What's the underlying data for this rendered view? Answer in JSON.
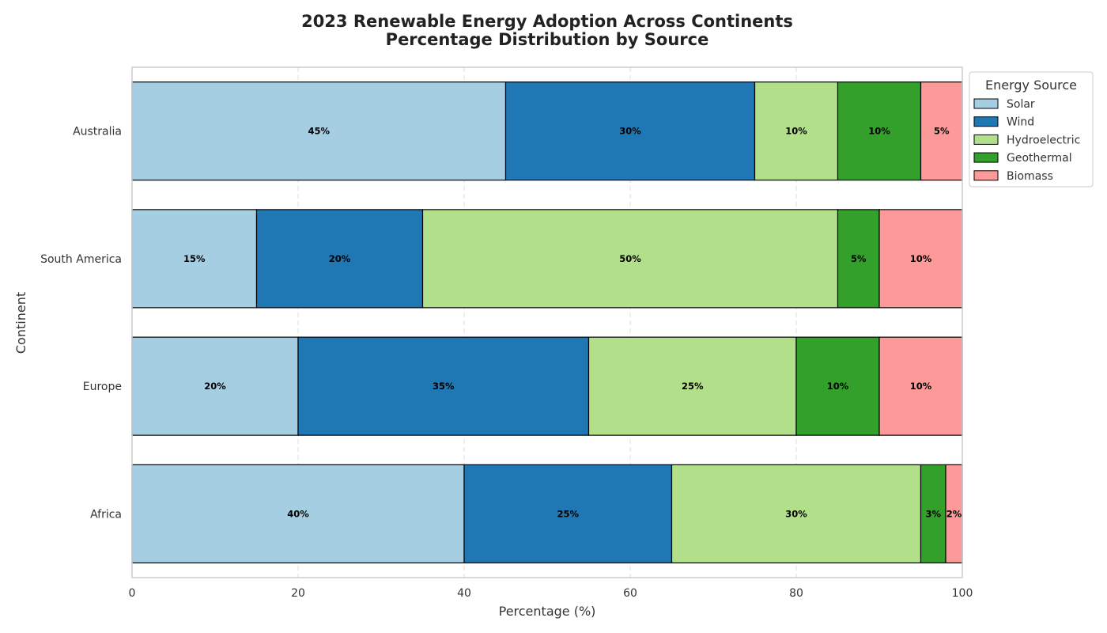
{
  "chart_data": {
    "type": "bar",
    "orientation": "horizontal",
    "stacked": true,
    "title_line1": "2023 Renewable Energy Adoption Across Continents",
    "title_line2": "Percentage Distribution by Source",
    "xlabel": "Percentage (%)",
    "ylabel": "Continent",
    "xlim": [
      0,
      100
    ],
    "xticks": [
      "0",
      "20",
      "40",
      "60",
      "80",
      "100"
    ],
    "grid": "vertical dashed",
    "categories": [
      "Australia",
      "South America",
      "Europe",
      "Africa"
    ],
    "series": [
      {
        "name": "Solar",
        "color": "#a6cee3",
        "values": [
          45,
          15,
          20,
          40
        ],
        "labels": [
          "45%",
          "15%",
          "20%",
          "40%"
        ]
      },
      {
        "name": "Wind",
        "color": "#1f78b4",
        "values": [
          30,
          20,
          35,
          25
        ],
        "labels": [
          "30%",
          "20%",
          "35%",
          "25%"
        ]
      },
      {
        "name": "Hydroelectric",
        "color": "#b2df8a",
        "values": [
          10,
          50,
          25,
          30
        ],
        "labels": [
          "10%",
          "50%",
          "25%",
          "30%"
        ]
      },
      {
        "name": "Geothermal",
        "color": "#33a02c",
        "values": [
          10,
          5,
          10,
          3
        ],
        "labels": [
          "10%",
          "5%",
          "10%",
          "3%"
        ]
      },
      {
        "name": "Biomass",
        "color": "#fb9a99",
        "values": [
          5,
          10,
          10,
          2
        ],
        "labels": [
          "5%",
          "10%",
          "10%",
          "2%"
        ]
      }
    ],
    "legend": {
      "title": "Energy Source",
      "placement": "outside upper right"
    }
  }
}
